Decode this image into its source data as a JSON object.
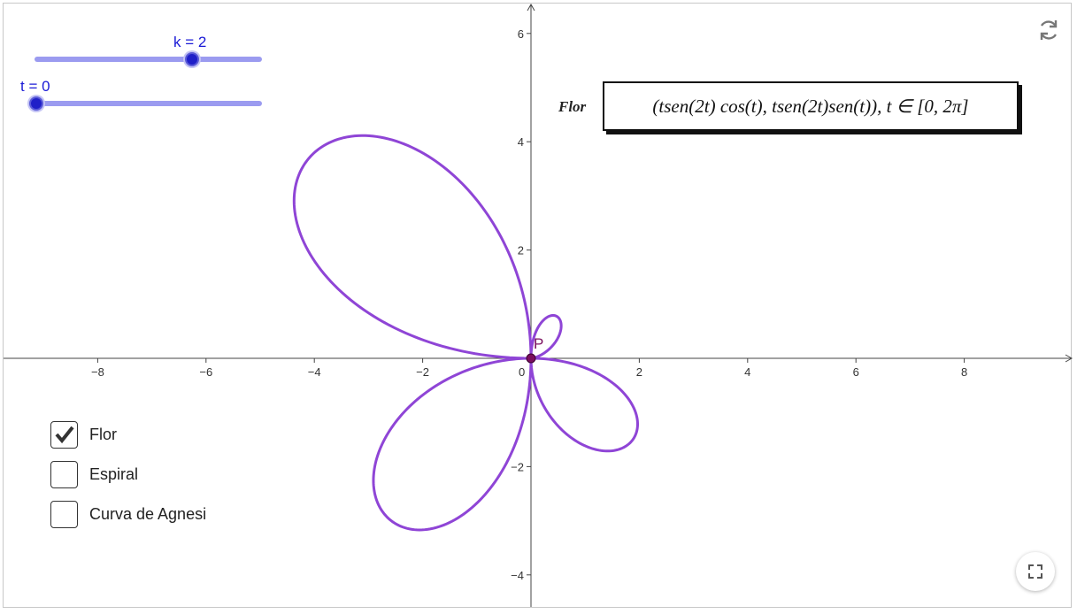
{
  "sliders": [
    {
      "name": "k",
      "label": "k = 2",
      "value": 2
    },
    {
      "name": "t",
      "label": "t = 0",
      "value": 0
    }
  ],
  "checkboxes": [
    {
      "label": "Flor",
      "checked": true
    },
    {
      "label": "Espiral",
      "checked": false
    },
    {
      "label": "Curva de Agnesi",
      "checked": false
    }
  ],
  "formula": {
    "name": "Flor",
    "text": "(tsen(2t) cos(t), tsen(2t)sen(t)), t ∈ [0, 2π]"
  },
  "point": {
    "label": "P",
    "x": 0,
    "y": 0
  },
  "axes": {
    "x_ticks": [
      "−8",
      "−6",
      "−4",
      "−2",
      "0",
      "2",
      "4",
      "6",
      "8"
    ],
    "y_ticks": [
      "6",
      "4",
      "2",
      "−2",
      "−4"
    ]
  },
  "colors": {
    "curve": "#8f45d6",
    "point": "#7a0f5e",
    "slider_track": "#9b9bf0",
    "slider_knob": "#1f1fc8",
    "slider_label": "#1a1ad6"
  },
  "icons": {
    "reset": "reset-icon",
    "fullscreen": "fullscreen-icon"
  }
}
